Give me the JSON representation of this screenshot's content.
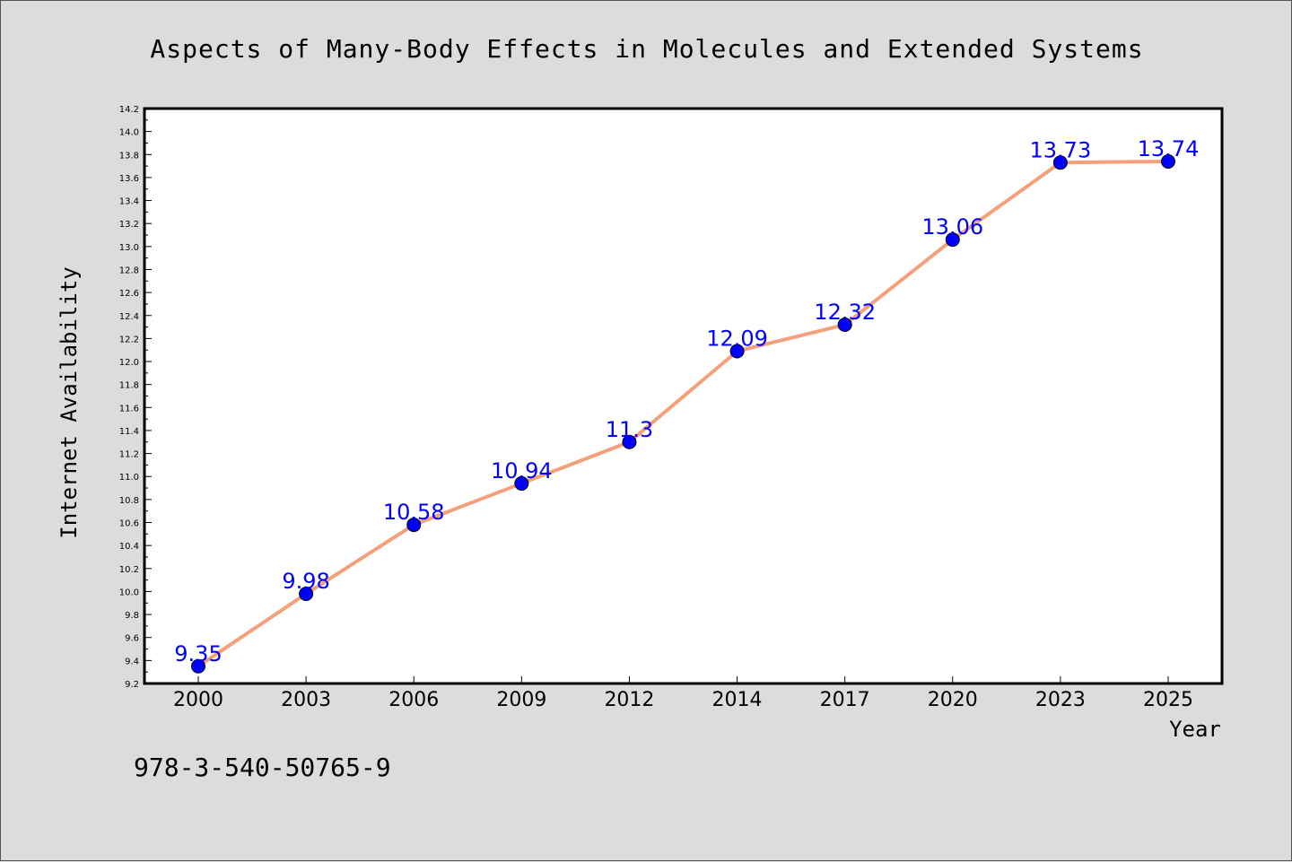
{
  "chart_data": {
    "type": "line",
    "title": "Aspects of Many-Body Effects in Molecules and Extended Systems",
    "xlabel": "Year",
    "ylabel": "Internet Availability",
    "categories": [
      "2000",
      "2003",
      "2006",
      "2009",
      "2012",
      "2014",
      "2017",
      "2020",
      "2023",
      "2025"
    ],
    "series": [
      {
        "values": [
          9.35,
          9.98,
          10.58,
          10.94,
          11.3,
          12.09,
          12.32,
          13.06,
          13.73,
          13.74
        ],
        "data_labels": [
          "9.35",
          "9.98",
          "10.58",
          "10.94",
          "11.3",
          "12.09",
          "12.32",
          "13.06",
          "13.73",
          "13.74"
        ],
        "line_color": "#f4a07a",
        "marker_color": "#0000ff"
      }
    ],
    "ylim": [
      9.2,
      14.2
    ],
    "yticks": [
      "9.2",
      "9.4",
      "9.6",
      "9.8",
      "10.0",
      "10.2",
      "10.4",
      "10.6",
      "10.8",
      "11.0",
      "11.2",
      "11.4",
      "11.6",
      "11.8",
      "12.0",
      "12.2",
      "12.4",
      "12.6",
      "12.8",
      "13.0",
      "13.2",
      "13.4",
      "13.6",
      "13.8",
      "14.0",
      "14.2"
    ],
    "grid": false,
    "legend": "none"
  },
  "footnote": "978-3-540-50765-9"
}
